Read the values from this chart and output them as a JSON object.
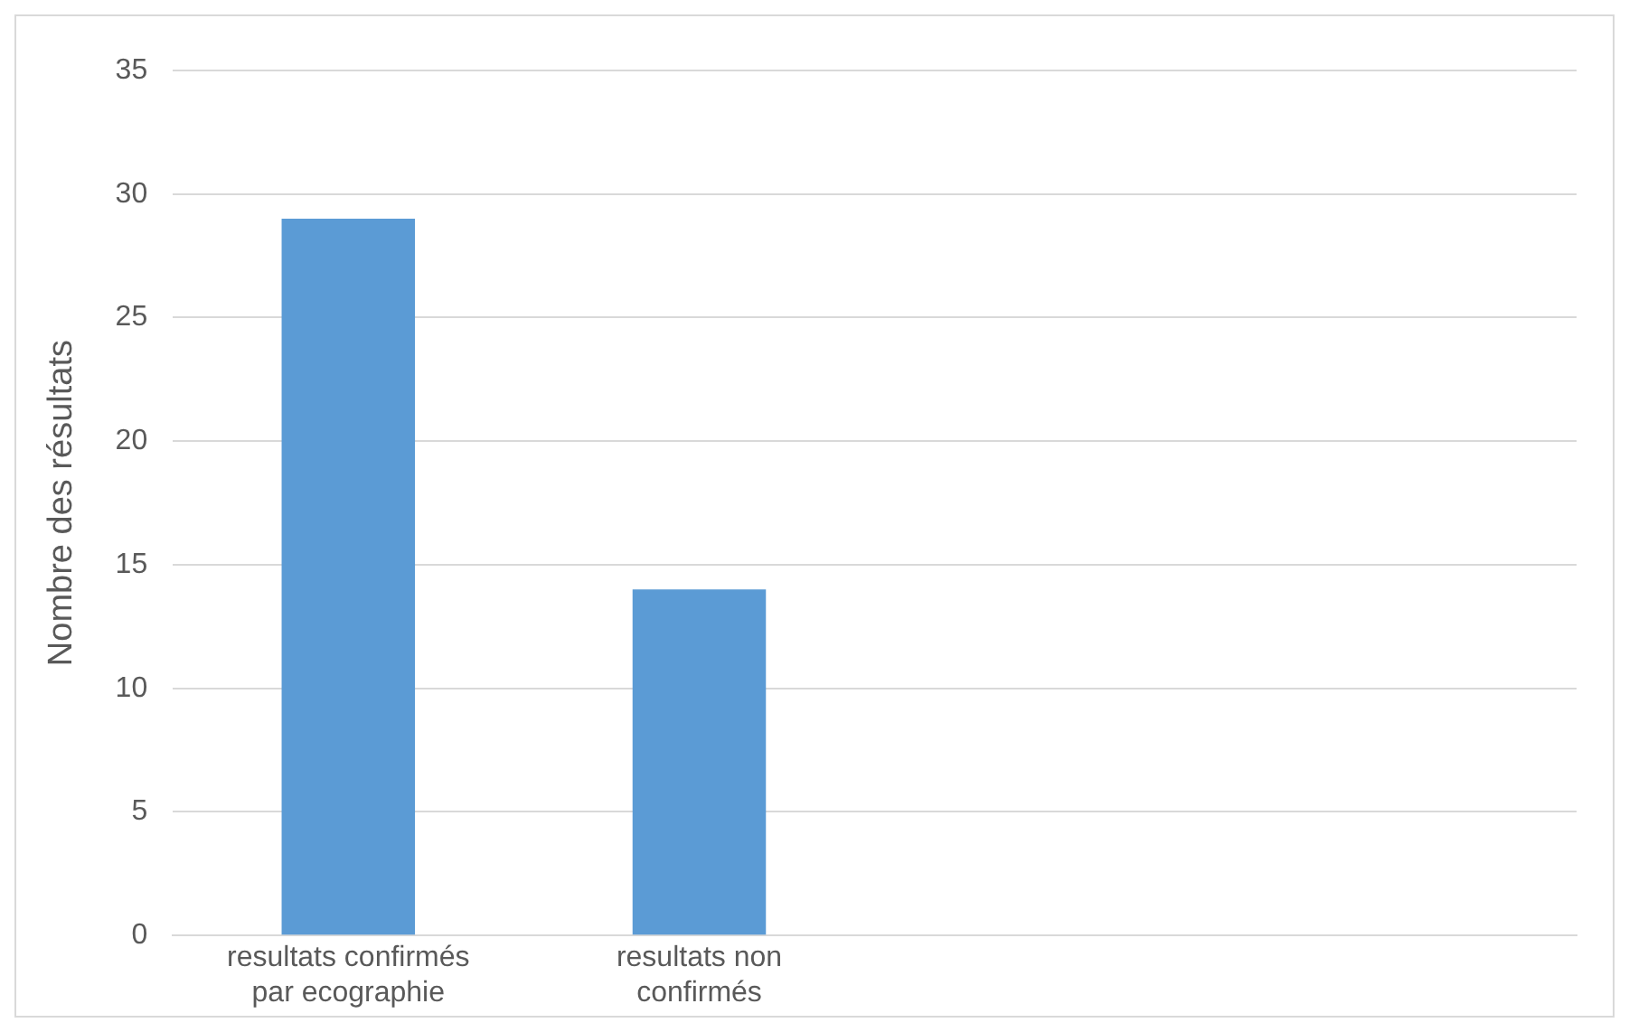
{
  "chart_data": {
    "type": "bar",
    "ylabel": "Nombre des résultats",
    "categories": [
      "resultats confirmés par ecographie",
      "resultats non confirmés",
      null,
      null
    ],
    "values": [
      29,
      14,
      null,
      null
    ],
    "color": "#5b9bd5",
    "ylim": [
      0,
      35
    ],
    "yticks": [
      0,
      5,
      10,
      15,
      20,
      25,
      30,
      35
    ],
    "grid": "y",
    "legend": false
  }
}
